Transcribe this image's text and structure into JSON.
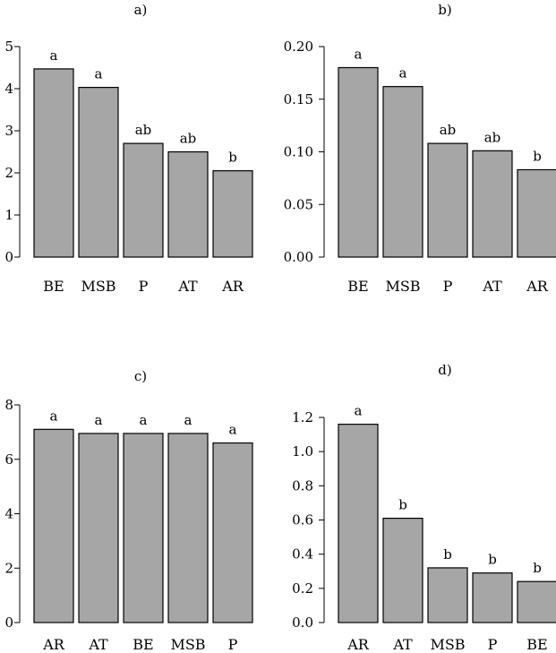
{
  "chart_data": [
    {
      "type": "bar",
      "title": "a)",
      "categories": [
        "BE",
        "MSB",
        "P",
        "AT",
        "AR"
      ],
      "values": [
        4.47,
        4.03,
        2.7,
        2.5,
        2.05
      ],
      "labels": [
        "a",
        "a",
        "ab",
        "ab",
        "b"
      ],
      "ylim": [
        0,
        5
      ],
      "yticks": [
        0,
        1,
        2,
        3,
        4,
        5
      ],
      "ytick_labels": [
        "0",
        "1",
        "2",
        "3",
        "4",
        "5"
      ],
      "xlabel": "",
      "ylabel": ""
    },
    {
      "type": "bar",
      "title": "b)",
      "categories": [
        "BE",
        "MSB",
        "P",
        "AT",
        "AR"
      ],
      "values": [
        0.18,
        0.162,
        0.108,
        0.101,
        0.083
      ],
      "labels": [
        "a",
        "a",
        "ab",
        "ab",
        "b"
      ],
      "ylim": [
        0,
        0.2
      ],
      "yticks": [
        0,
        0.05,
        0.1,
        0.15,
        0.2
      ],
      "ytick_labels": [
        "0.00",
        "0.05",
        "0.10",
        "0.15",
        "0.20"
      ],
      "xlabel": "",
      "ylabel": ""
    },
    {
      "type": "bar",
      "title": "c)",
      "categories": [
        "AR",
        "AT",
        "BE",
        "MSB",
        "P"
      ],
      "values": [
        7.1,
        6.95,
        6.95,
        6.95,
        6.6
      ],
      "labels": [
        "a",
        "a",
        "a",
        "a",
        "a"
      ],
      "ylim": [
        0,
        8
      ],
      "yticks": [
        0,
        2,
        4,
        6,
        8
      ],
      "ytick_labels": [
        "0",
        "2",
        "4",
        "6",
        "8"
      ],
      "xlabel": "",
      "ylabel": ""
    },
    {
      "type": "bar",
      "title": "d)",
      "categories": [
        "AR",
        "AT",
        "MSB",
        "P",
        "BE"
      ],
      "values": [
        1.16,
        0.61,
        0.32,
        0.29,
        0.24
      ],
      "labels": [
        "a",
        "b",
        "b",
        "b",
        "b"
      ],
      "ylim": [
        0,
        1.2
      ],
      "yticks": [
        0,
        0.2,
        0.4,
        0.6,
        0.8,
        1.0,
        1.2
      ],
      "ytick_labels": [
        "0.0",
        "0.2",
        "0.4",
        "0.6",
        "0.8",
        "1.0",
        "1.2"
      ],
      "xlabel": "",
      "ylabel": ""
    }
  ]
}
